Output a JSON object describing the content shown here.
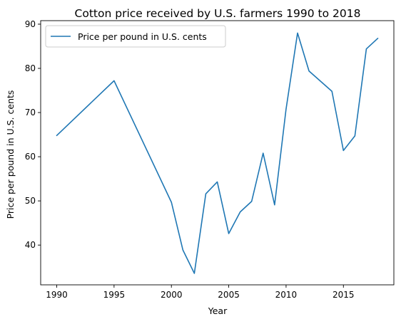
{
  "chart_data": {
    "type": "line",
    "title": "Cotton price received by U.S. farmers 1990 to 2018",
    "xlabel": "Year",
    "ylabel": "Price per pound in U.S. cents",
    "xlim": [
      1988.6,
      2019.4
    ],
    "ylim": [
      31.0,
      90.8
    ],
    "xticks": [
      1990,
      1995,
      2000,
      2005,
      2010,
      2015
    ],
    "yticks": [
      40,
      50,
      60,
      70,
      80,
      90
    ],
    "grid": false,
    "legend": {
      "position": "top-left"
    },
    "series": [
      {
        "name": "Price per pound in U.S. cents",
        "color": "#1f77b4",
        "x": [
          1990,
          1995,
          2000,
          2001,
          2002,
          2003,
          2004,
          2005,
          2006,
          2007,
          2008,
          2009,
          2010,
          2011,
          2012,
          2014,
          2015,
          2016,
          2017,
          2018
        ],
        "y": [
          64.8,
          77.2,
          49.7,
          38.9,
          33.6,
          51.6,
          54.3,
          42.6,
          47.5,
          49.9,
          60.8,
          49.1,
          70.8,
          88.0,
          79.4,
          74.8,
          61.4,
          64.7,
          84.4,
          86.8
        ]
      }
    ]
  }
}
